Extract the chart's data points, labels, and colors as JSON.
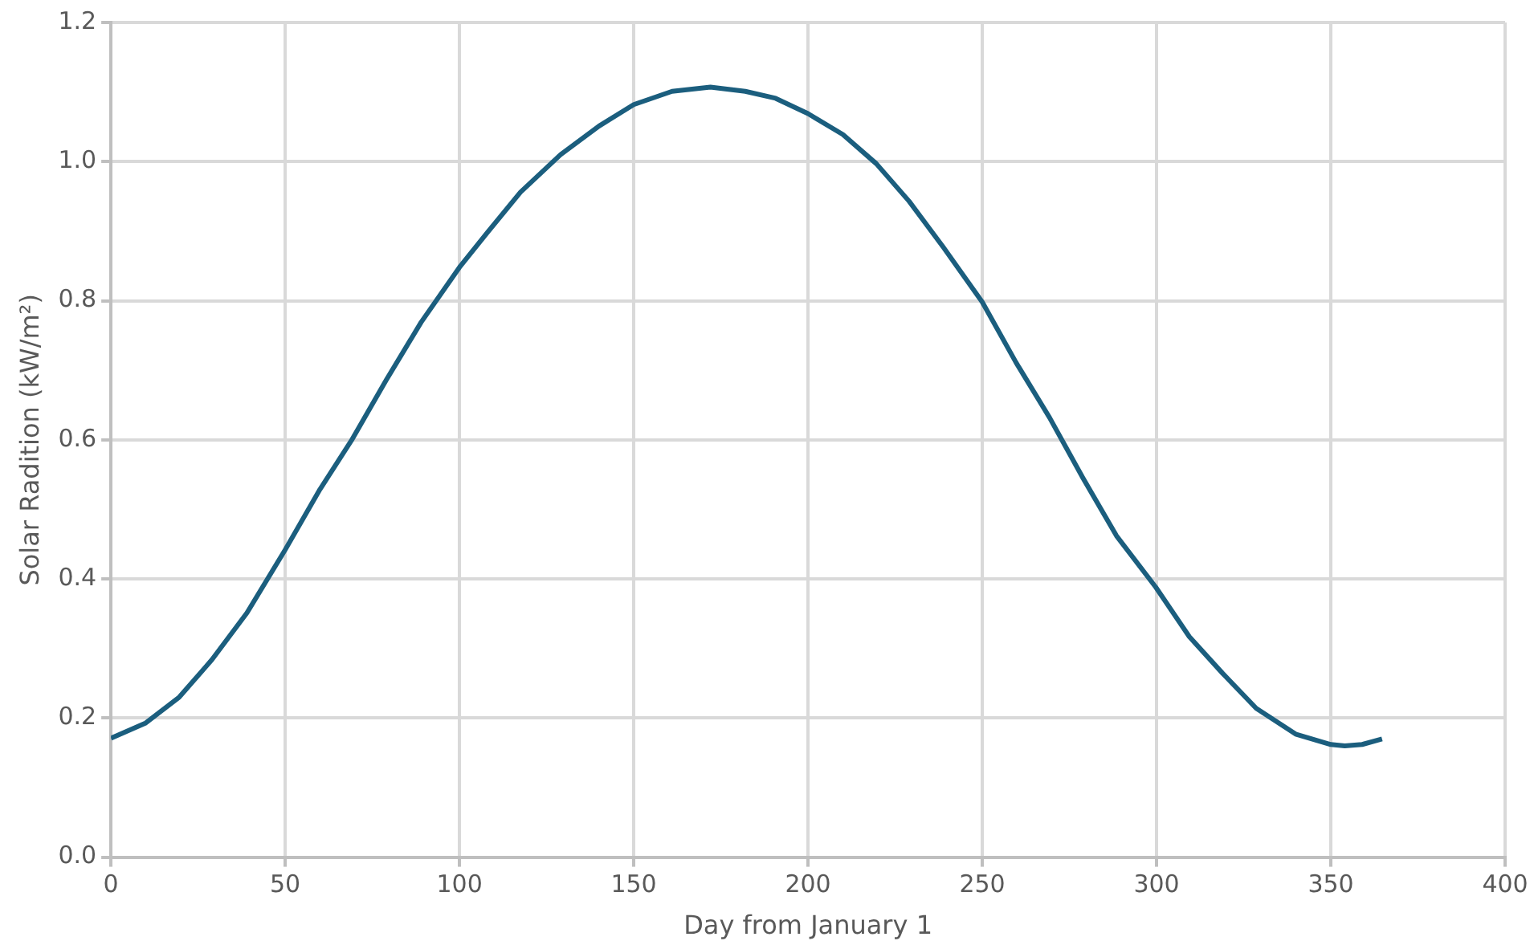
{
  "chart_data": {
    "type": "line",
    "xlabel": "Day from January 1",
    "ylabel": "Solar Radition (kW/m²)",
    "x": [
      0,
      10,
      19.6,
      29,
      39,
      50,
      60,
      69,
      79,
      89,
      100,
      108,
      117.5,
      129,
      140,
      150,
      161,
      172,
      182,
      190.7,
      200,
      210,
      219.6,
      229,
      238.8,
      250,
      259.7,
      269.3,
      278.9,
      288.5,
      299.8,
      309.4,
      319,
      328.6,
      339.9,
      350,
      354,
      359,
      364.7
    ],
    "values": [
      0.171,
      0.193,
      0.23,
      0.284,
      0.351,
      0.442,
      0.529,
      0.599,
      0.686,
      0.769,
      0.848,
      0.898,
      0.956,
      1.01,
      1.051,
      1.082,
      1.101,
      1.107,
      1.101,
      1.091,
      1.069,
      1.039,
      0.997,
      0.943,
      0.877,
      0.798,
      0.711,
      0.632,
      0.545,
      0.462,
      0.388,
      0.317,
      0.264,
      0.214,
      0.177,
      0.162,
      0.16,
      0.162,
      0.17
    ],
    "color": "#1b5e7e",
    "line_style": "solid",
    "xlim": [
      0,
      400
    ],
    "xticks": [
      0,
      50,
      100,
      150,
      200,
      250,
      300,
      350,
      400
    ],
    "ylim": [
      0,
      1.2
    ],
    "yticks": [
      {
        "value": 0,
        "label": "0.0"
      },
      {
        "value": 0.2,
        "label": "0.2"
      },
      {
        "value": 0.4,
        "label": "0.4"
      },
      {
        "value": 0.6,
        "label": "0.6"
      },
      {
        "value": 0.8,
        "label": "0.8"
      },
      {
        "value": 1,
        "label": "1.0"
      },
      {
        "value": 1.2,
        "label": "1.2"
      }
    ],
    "grid": true
  }
}
